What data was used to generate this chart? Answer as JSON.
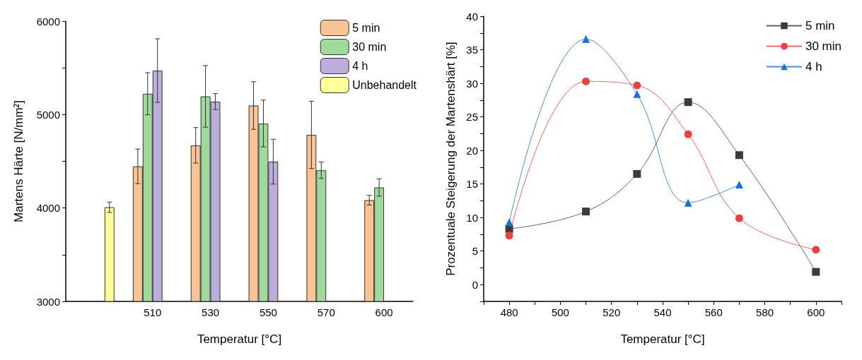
{
  "chart_data": [
    {
      "type": "bar",
      "xlabel": "Temperatur [°C]",
      "ylabel": "Martens Härte [N/mm²]",
      "categories": [
        null,
        "510",
        "530",
        "550",
        "570",
        "600"
      ],
      "series": [
        {
          "name": "5 min",
          "color": "#f9c396",
          "values": [
            null,
            4446,
            4671,
            5097,
            4783,
            4084
          ],
          "errors": [
            null,
            185,
            190,
            255,
            360,
            52
          ]
        },
        {
          "name": "30 min",
          "color": "#9fd99c",
          "values": [
            null,
            5223,
            5195,
            4905,
            4404,
            4220
          ],
          "errors": [
            null,
            225,
            330,
            250,
            88,
            93
          ]
        },
        {
          "name": "4 h",
          "color": "#bcaedb",
          "values": [
            null,
            5471,
            5139,
            4496,
            null,
            null
          ],
          "errors": [
            null,
            340,
            85,
            240,
            null,
            null
          ]
        },
        {
          "name": "Unbehandelt",
          "color": "#ffff99",
          "values": [
            4008,
            null,
            null,
            null,
            null,
            null
          ],
          "errors": [
            55,
            null,
            null,
            null,
            null,
            null
          ]
        }
      ],
      "ylim": [
        3000,
        6000
      ],
      "yticks": [
        3000,
        {
          "value": 3500,
          "label": null
        },
        4000,
        {
          "value": 4500,
          "label": null
        },
        5000,
        {
          "value": 5500,
          "label": null
        },
        6000
      ],
      "legend": "top right"
    },
    {
      "type": "line",
      "xlabel": "Temperatur [°C]",
      "ylabel": "Prozentuale Steigerung der Martenshärt [%]",
      "x": [
        480,
        510,
        530,
        550,
        570,
        600
      ],
      "series": [
        {
          "name": "5 min",
          "color": "#3c3c3c",
          "marker": "square",
          "values": [
            8.3,
            10.9,
            16.5,
            27.2,
            19.3,
            1.9
          ]
        },
        {
          "name": "30 min",
          "color": "#e8413f",
          "marker": "circle",
          "values": [
            7.3,
            30.3,
            29.7,
            22.4,
            9.9,
            5.2
          ]
        },
        {
          "name": "4 h",
          "color": "#1f6fd6",
          "marker": "triangle",
          "values": [
            9.3,
            36.6,
            28.4,
            12.2,
            14.9,
            null
          ]
        }
      ],
      "xlim": [
        470,
        610
      ],
      "xticks": [
        {
          "value": 470,
          "label": null
        },
        480,
        {
          "value": 490,
          "label": null
        },
        500,
        {
          "value": 510,
          "label": null
        },
        520,
        {
          "value": 530,
          "label": null
        },
        540,
        {
          "value": 550,
          "label": null
        },
        560,
        {
          "value": 570,
          "label": null
        },
        580,
        {
          "value": 590,
          "label": null
        },
        600,
        {
          "value": 610,
          "label": null
        }
      ],
      "ylim": [
        -2.5,
        40
      ],
      "yticks": [
        {
          "value": -2.5,
          "label": null
        },
        0,
        {
          "value": 2.5,
          "label": null
        },
        5,
        {
          "value": 7.5,
          "label": null
        },
        10,
        {
          "value": 12.5,
          "label": null
        },
        15,
        {
          "value": 17.5,
          "label": null
        },
        20,
        {
          "value": 22.5,
          "label": null
        },
        25,
        {
          "value": 27.5,
          "label": null
        },
        30,
        {
          "value": 32.5,
          "label": null
        },
        35,
        {
          "value": 37.5,
          "label": null
        },
        40
      ],
      "legend": "top right",
      "line_style": "solid"
    }
  ]
}
